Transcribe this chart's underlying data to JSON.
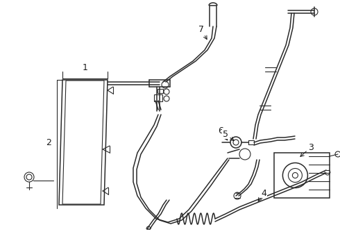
{
  "bg_color": "#ffffff",
  "line_color": "#2a2a2a",
  "label_color": "#1a1a1a",
  "figsize": [
    4.9,
    3.6
  ],
  "dpi": 100
}
